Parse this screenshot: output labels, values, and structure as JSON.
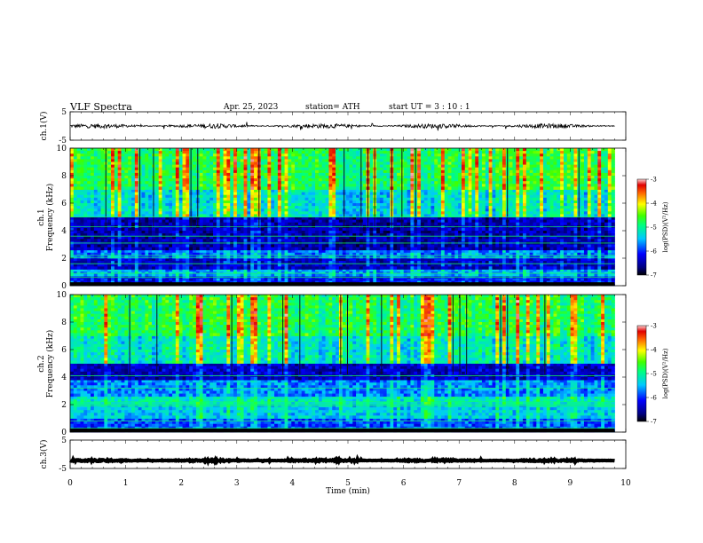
{
  "header": {
    "title": "VLF  Spectra",
    "date": "Apr. 25, 2023",
    "station": "station= ATH",
    "start": "start  UT  =    3  : 10 : 1"
  },
  "chart_data": [
    {
      "type": "line",
      "name": "ch1-waveform",
      "ylabel": "ch.1(V)",
      "ylim": [
        -5,
        5
      ],
      "y_ticks": [
        "5",
        "-5"
      ],
      "xlim": [
        0,
        10
      ],
      "x_extent_min": 9.8,
      "description_values": {
        "mean_v": 0.0,
        "typical_amplitude_v": 0.8
      }
    },
    {
      "type": "heatmap",
      "name": "ch1-spectrogram",
      "ylabel": "ch.1\nFrequency (kHz)",
      "ylabel_lines": [
        "ch.1",
        "Frequency  (kHz)"
      ],
      "ylim": [
        0,
        10
      ],
      "y_ticks": [
        "0",
        "2",
        "4",
        "6",
        "8",
        "10"
      ],
      "xlim": [
        0,
        10
      ],
      "x_extent_min": 9.8,
      "colorbar": {
        "label": "log(PSD)(V²/Hz)",
        "range": [
          -7,
          -3
        ],
        "ticks": [
          "-3",
          "-4",
          "-5",
          "-6",
          "-7"
        ]
      },
      "bands": [
        {
          "f_low_khz": 0.0,
          "f_high_khz": 0.7,
          "level": -6.2
        },
        {
          "f_low_khz": 0.7,
          "f_high_khz": 1.2,
          "level": -5.6
        },
        {
          "f_low_khz": 1.2,
          "f_high_khz": 2.0,
          "level": -6.4
        },
        {
          "f_low_khz": 2.0,
          "f_high_khz": 2.6,
          "level": -5.8
        },
        {
          "f_low_khz": 2.6,
          "f_high_khz": 5.0,
          "level": -6.5
        },
        {
          "f_low_khz": 5.0,
          "f_high_khz": 7.0,
          "level": -5.3
        },
        {
          "f_low_khz": 7.0,
          "f_high_khz": 10.0,
          "level": -4.8
        }
      ],
      "tones_khz": [
        0.6,
        0.9,
        1.6,
        2.05,
        2.2,
        3.1,
        3.6,
        4.3,
        5.0
      ]
    },
    {
      "type": "heatmap",
      "name": "ch2-spectrogram",
      "ylabel_lines": [
        "ch.2",
        "Frequency  (kHz)"
      ],
      "ylim": [
        0,
        10
      ],
      "y_ticks": [
        "0",
        "2",
        "4",
        "6",
        "8",
        "10"
      ],
      "xlim": [
        0,
        10
      ],
      "x_extent_min": 9.8,
      "colorbar": {
        "label": "log(PSD)(V²/Hz)",
        "range": [
          -7,
          -3
        ],
        "ticks": [
          "-3",
          "-4",
          "-5",
          "-6",
          "-7"
        ]
      },
      "bands": [
        {
          "f_low_khz": 0.0,
          "f_high_khz": 1.0,
          "level": -5.9
        },
        {
          "f_low_khz": 1.0,
          "f_high_khz": 2.0,
          "level": -5.4
        },
        {
          "f_low_khz": 2.0,
          "f_high_khz": 2.6,
          "level": -5.2
        },
        {
          "f_low_khz": 2.6,
          "f_high_khz": 3.8,
          "level": -5.7
        },
        {
          "f_low_khz": 3.8,
          "f_high_khz": 5.0,
          "level": -6.4
        },
        {
          "f_low_khz": 5.0,
          "f_high_khz": 7.0,
          "level": -5.2
        },
        {
          "f_low_khz": 7.0,
          "f_high_khz": 10.0,
          "level": -4.8
        }
      ],
      "tones_khz": [
        0.3,
        0.8,
        1.9,
        2.05,
        2.2,
        3.2,
        4.1
      ]
    },
    {
      "type": "line",
      "name": "ch3-waveform",
      "ylabel": "ch.3(V)",
      "ylim": [
        -5,
        5
      ],
      "y_ticks": [
        "5",
        "-5"
      ],
      "xlim": [
        0,
        10
      ],
      "x_extent_min": 9.8,
      "description_values": {
        "mean_v": -2.2,
        "typical_amplitude_v": 0.3
      }
    }
  ],
  "x_axis": {
    "label": "Time  (min)",
    "ticks": [
      "0",
      "1",
      "2",
      "3",
      "4",
      "5",
      "6",
      "7",
      "8",
      "9",
      "10"
    ]
  }
}
